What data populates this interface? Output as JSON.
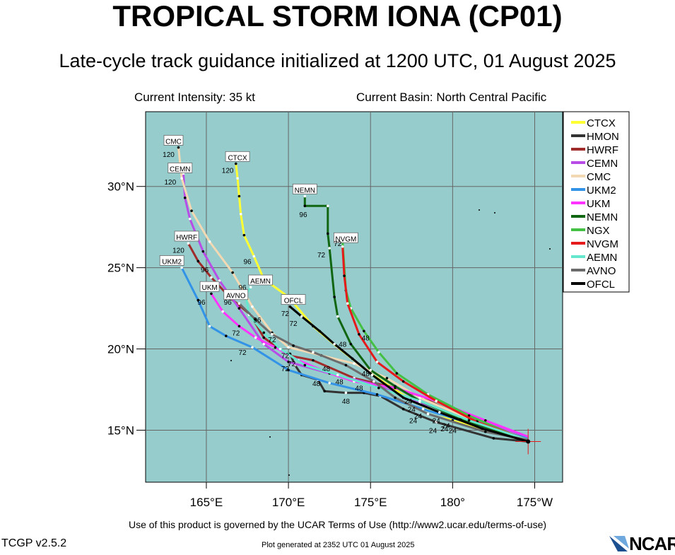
{
  "header": {
    "title": "TROPICAL STORM IONA (CP01)",
    "subtitle": "Late-cycle track guidance initialized at 1200 UTC, 01 August 2025",
    "intensity": "Current Intensity: 35 kt",
    "basin": "Current Basin: North Central Pacific"
  },
  "axes": {
    "lon_ticks": [
      {
        "label": "165°E",
        "lon": 165
      },
      {
        "label": "170°E",
        "lon": 170
      },
      {
        "label": "175°E",
        "lon": 175
      },
      {
        "label": "180°",
        "lon": 180
      },
      {
        "label": "175°W",
        "lon": 185
      }
    ],
    "lat_ticks": [
      {
        "label": "15°N",
        "lat": 15
      },
      {
        "label": "20°N",
        "lat": 20
      },
      {
        "label": "25°N",
        "lat": 25
      },
      {
        "label": "30°N",
        "lat": 30
      }
    ],
    "lon_range": [
      161.3,
      186.7
    ],
    "lat_range": [
      11.8,
      34.6
    ]
  },
  "colors": {
    "ocean": "#96CCCC",
    "grid": "#666666"
  },
  "legend": {
    "placement": "top-right",
    "items": [
      {
        "label": "CTCX",
        "color": "#FFFF33"
      },
      {
        "label": "HMON",
        "color": "#333333"
      },
      {
        "label": "HWRF",
        "color": "#A02B2B"
      },
      {
        "label": "CEMN",
        "color": "#B84CE6"
      },
      {
        "label": "CMC",
        "color": "#F2D9B3"
      },
      {
        "label": "UKM2",
        "color": "#3393E6"
      },
      {
        "label": "UKM",
        "color": "#FF33FF"
      },
      {
        "label": "NEMN",
        "color": "#116611"
      },
      {
        "label": "NGX",
        "color": "#44C044"
      },
      {
        "label": "NVGM",
        "color": "#E61A1A"
      },
      {
        "label": "AEMN",
        "color": "#66E6CC"
      },
      {
        "label": "AVNO",
        "color": "#6B6B6B"
      },
      {
        "label": "OFCL",
        "color": "#000000"
      }
    ]
  },
  "chart_data": {
    "type": "map",
    "current_position": {
      "lon": 184.6,
      "lat": 14.3
    },
    "tracks": [
      {
        "name": "CTCX",
        "points": [
          [
            184.6,
            14.3
          ],
          [
            180.0,
            15.6
          ],
          [
            177.4,
            16.9
          ],
          [
            175.0,
            18.5
          ],
          [
            173.0,
            20.1
          ],
          [
            171.5,
            21.4
          ],
          [
            170.0,
            23.2
          ],
          [
            168.5,
            24.3
          ],
          [
            167.9,
            25.7
          ],
          [
            167.3,
            27.0
          ],
          [
            167.1,
            28.3
          ],
          [
            167.0,
            29.4
          ],
          [
            166.9,
            30.5
          ],
          [
            166.8,
            31.4
          ]
        ],
        "labels": [
          {
            "text": "CTCX",
            "lon": 166.9,
            "lat": 31.8
          },
          {
            "text": "120",
            "lon": 166.3,
            "lat": 31.0
          },
          {
            "text": "96",
            "lon": 167.5,
            "lat": 25.4
          }
        ]
      },
      {
        "name": "HMON",
        "points": [
          [
            184.6,
            14.3
          ],
          [
            182.5,
            14.5
          ],
          [
            179.0,
            15.5
          ],
          [
            177.0,
            16.3
          ],
          [
            175.6,
            17.1
          ],
          [
            174.6,
            17.3
          ],
          [
            173.5,
            17.3
          ],
          [
            172.2,
            17.4
          ],
          [
            171.8,
            18.1
          ],
          [
            170.8,
            18.4
          ],
          [
            170.4,
            19.0
          ],
          [
            170.1,
            19.7
          ]
        ],
        "labels": [
          {
            "text": "48",
            "lon": 173.5,
            "lat": 16.8
          },
          {
            "text": "24",
            "lon": 179.5,
            "lat": 15.1
          }
        ]
      },
      {
        "name": "HWRF",
        "points": [
          [
            184.6,
            14.3
          ],
          [
            181.0,
            15.6
          ],
          [
            178.2,
            17.0
          ],
          [
            176.5,
            17.6
          ],
          [
            174.0,
            18.2
          ],
          [
            171.5,
            19.3
          ],
          [
            170.0,
            19.6
          ],
          [
            168.5,
            20.7
          ],
          [
            167.7,
            22.1
          ],
          [
            166.5,
            23.1
          ],
          [
            165.3,
            24.4
          ],
          [
            164.5,
            25.4
          ],
          [
            163.9,
            26.5
          ]
        ],
        "labels": [
          {
            "text": "HWRF",
            "lon": 163.8,
            "lat": 26.9
          },
          {
            "text": "120",
            "lon": 163.3,
            "lat": 26.1
          },
          {
            "text": "96",
            "lon": 164.9,
            "lat": 24.9
          }
        ]
      },
      {
        "name": "CEMN",
        "points": [
          [
            184.6,
            14.6
          ],
          [
            181.5,
            15.6
          ],
          [
            178.0,
            16.7
          ],
          [
            175.3,
            17.8
          ],
          [
            172.5,
            18.5
          ],
          [
            170.0,
            19.2
          ],
          [
            168.5,
            20.3
          ],
          [
            167.0,
            22.5
          ],
          [
            165.8,
            24.2
          ],
          [
            164.8,
            26.0
          ],
          [
            164.0,
            28.0
          ],
          [
            163.7,
            29.3
          ],
          [
            163.6,
            30.8
          ]
        ],
        "labels": [
          {
            "text": "CEMN",
            "lon": 163.4,
            "lat": 31.1
          },
          {
            "text": "120",
            "lon": 162.8,
            "lat": 30.3
          }
        ]
      },
      {
        "name": "CMC",
        "points": [
          [
            184.6,
            14.3
          ],
          [
            181.0,
            15.7
          ],
          [
            178.0,
            17.0
          ],
          [
            176.0,
            18.2
          ],
          [
            174.0,
            19.1
          ],
          [
            172.0,
            19.6
          ],
          [
            170.0,
            20.1
          ],
          [
            169.0,
            21.0
          ],
          [
            167.8,
            22.6
          ],
          [
            166.6,
            24.7
          ],
          [
            165.2,
            26.6
          ],
          [
            164.1,
            28.5
          ],
          [
            163.5,
            30.5
          ],
          [
            163.3,
            32.4
          ]
        ],
        "labels": [
          {
            "text": "CMC",
            "lon": 163.0,
            "lat": 32.8
          },
          {
            "text": "120",
            "lon": 162.7,
            "lat": 32.0
          }
        ]
      },
      {
        "name": "UKM2",
        "points": [
          [
            184.6,
            14.5
          ],
          [
            181.5,
            15.3
          ],
          [
            178.2,
            16.3
          ],
          [
            175.4,
            17.2
          ],
          [
            172.5,
            17.9
          ],
          [
            170.0,
            18.7
          ],
          [
            167.8,
            20.1
          ],
          [
            166.2,
            20.8
          ],
          [
            165.2,
            21.4
          ],
          [
            164.5,
            23.0
          ],
          [
            163.5,
            25.0
          ]
        ],
        "labels": [
          {
            "text": "UKM2",
            "lon": 162.9,
            "lat": 25.4
          },
          {
            "text": "72",
            "lon": 167.2,
            "lat": 19.8
          }
        ]
      },
      {
        "name": "UKM",
        "points": [
          [
            184.6,
            14.6
          ],
          [
            182.0,
            15.6
          ],
          [
            179.0,
            16.8
          ],
          [
            176.5,
            17.6
          ],
          [
            174.0,
            18.0
          ],
          [
            172.5,
            18.5
          ],
          [
            170.6,
            19.3
          ],
          [
            169.2,
            20.1
          ],
          [
            168.0,
            20.7
          ],
          [
            167.0,
            21.4
          ],
          [
            166.0,
            22.3
          ],
          [
            165.3,
            23.4
          ]
        ],
        "labels": [
          {
            "text": "UKM",
            "lon": 165.2,
            "lat": 23.8
          },
          {
            "text": "96",
            "lon": 164.7,
            "lat": 22.9
          },
          {
            "text": "72",
            "lon": 166.8,
            "lat": 21.0
          }
        ]
      },
      {
        "name": "NEMN",
        "points": [
          [
            184.6,
            14.3
          ],
          [
            180.5,
            15.7
          ],
          [
            178.0,
            16.8
          ],
          [
            176.5,
            17.7
          ],
          [
            175.0,
            18.7
          ],
          [
            173.8,
            20.3
          ],
          [
            173.0,
            22.0
          ],
          [
            172.8,
            23.2
          ],
          [
            172.5,
            26.2
          ],
          [
            172.4,
            27.1
          ],
          [
            172.4,
            28.8
          ],
          [
            171.0,
            28.8
          ],
          [
            171.0,
            29.4
          ]
        ],
        "labels": [
          {
            "text": "NEMN",
            "lon": 171.0,
            "lat": 29.8
          },
          {
            "text": "96",
            "lon": 170.9,
            "lat": 28.3
          },
          {
            "text": "72",
            "lon": 172.0,
            "lat": 25.8
          }
        ]
      },
      {
        "name": "NGX",
        "points": [
          [
            184.6,
            14.3
          ],
          [
            181.0,
            15.9
          ],
          [
            178.5,
            17.2
          ],
          [
            176.6,
            18.5
          ],
          [
            175.5,
            19.8
          ],
          [
            174.6,
            21.1
          ],
          [
            173.8,
            22.5
          ],
          [
            173.5,
            23.6
          ],
          [
            173.3,
            26.6
          ]
        ],
        "labels": [
          {
            "text": "48",
            "lon": 174.7,
            "lat": 20.7
          }
        ]
      },
      {
        "name": "NVGM",
        "points": [
          [
            184.6,
            14.4
          ],
          [
            181.5,
            15.5
          ],
          [
            179.0,
            16.8
          ],
          [
            177.0,
            18.0
          ],
          [
            175.4,
            19.2
          ],
          [
            174.3,
            20.9
          ],
          [
            173.6,
            22.8
          ],
          [
            173.4,
            24.5
          ],
          [
            173.3,
            26.3
          ]
        ],
        "labels": [
          {
            "text": "NVGM",
            "lon": 173.5,
            "lat": 26.8
          },
          {
            "text": "72",
            "lon": 173.0,
            "lat": 26.5
          }
        ]
      },
      {
        "name": "AEMN",
        "points": [
          [
            184.6,
            14.4
          ],
          [
            181.0,
            15.6
          ],
          [
            178.0,
            16.8
          ],
          [
            175.5,
            17.6
          ],
          [
            173.0,
            18.4
          ],
          [
            171.0,
            19.0
          ],
          [
            169.5,
            20.0
          ],
          [
            168.5,
            21.0
          ],
          [
            167.6,
            22.1
          ],
          [
            167.4,
            23.3
          ],
          [
            167.7,
            23.8
          ]
        ],
        "labels": [
          {
            "text": "AEMN",
            "lon": 168.3,
            "lat": 24.2
          },
          {
            "text": "96",
            "lon": 167.2,
            "lat": 23.8
          }
        ]
      },
      {
        "name": "AVNO",
        "points": [
          [
            184.6,
            14.4
          ],
          [
            182.0,
            14.9
          ],
          [
            178.5,
            16.0
          ],
          [
            176.5,
            17.0
          ],
          [
            175.2,
            18.0
          ],
          [
            173.5,
            19.0
          ],
          [
            171.5,
            19.8
          ],
          [
            170.3,
            20.2
          ],
          [
            169.0,
            20.9
          ],
          [
            168.0,
            21.8
          ],
          [
            167.0,
            22.8
          ]
        ],
        "labels": [
          {
            "text": "AVNO",
            "lon": 166.8,
            "lat": 23.3
          },
          {
            "text": "96",
            "lon": 166.3,
            "lat": 22.9
          },
          {
            "text": "96",
            "lon": 168.1,
            "lat": 21.8
          },
          {
            "text": "72",
            "lon": 169.0,
            "lat": 20.6
          }
        ]
      },
      {
        "name": "OFCL",
        "points": [
          [
            184.6,
            14.3
          ],
          [
            181.8,
            15.1
          ],
          [
            179.2,
            16.1
          ],
          [
            177.0,
            17.0
          ],
          [
            175.1,
            18.4
          ],
          [
            173.9,
            19.4
          ],
          [
            172.8,
            20.3
          ],
          [
            171.9,
            21.1
          ],
          [
            170.8,
            22.0
          ],
          [
            170.1,
            22.6
          ]
        ],
        "labels": [
          {
            "text": "OFCL",
            "lon": 170.3,
            "lat": 23.0
          },
          {
            "text": "72",
            "lon": 169.8,
            "lat": 22.2
          },
          {
            "text": "72",
            "lon": 170.3,
            "lat": 21.6
          },
          {
            "text": "48",
            "lon": 173.3,
            "lat": 20.3
          },
          {
            "text": "48",
            "lon": 172.3,
            "lat": 18.8
          },
          {
            "text": "48",
            "lon": 171.7,
            "lat": 17.9
          },
          {
            "text": "48",
            "lon": 174.7,
            "lat": 18.5
          },
          {
            "text": "48",
            "lon": 173.1,
            "lat": 18.0
          },
          {
            "text": "48",
            "lon": 174.3,
            "lat": 17.6
          },
          {
            "text": "72",
            "lon": 169.8,
            "lat": 19.6
          },
          {
            "text": "72",
            "lon": 170.2,
            "lat": 19.1
          },
          {
            "text": "72",
            "lon": 169.8,
            "lat": 18.8
          },
          {
            "text": "24",
            "lon": 177.3,
            "lat": 16.8
          },
          {
            "text": "24",
            "lon": 177.5,
            "lat": 16.3
          },
          {
            "text": "24",
            "lon": 177.9,
            "lat": 15.9
          },
          {
            "text": "24",
            "lon": 177.6,
            "lat": 15.6
          },
          {
            "text": "24",
            "lon": 179.0,
            "lat": 15.6
          },
          {
            "text": "24",
            "lon": 179.6,
            "lat": 15.3
          },
          {
            "text": "24",
            "lon": 178.8,
            "lat": 15.0
          },
          {
            "text": "24",
            "lon": 180.0,
            "lat": 15.0
          }
        ]
      }
    ]
  },
  "footer": {
    "terms": "Use of this product is governed by the UCAR Terms of Use (http://www2.ucar.edu/terms-of-use)",
    "version": "TCGP v2.5.2",
    "generated": "Plot generated at 2352 UTC   01 August 2025",
    "logo_text": "NCAR"
  }
}
